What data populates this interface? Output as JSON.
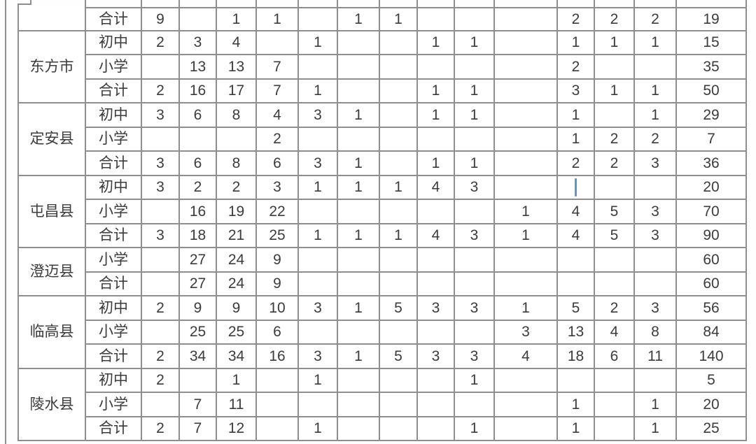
{
  "colors": {
    "grid_line": "#8e8e8e",
    "text": "#3b3b3b",
    "cursor": "#5e97cf"
  },
  "table": {
    "column_count": 14,
    "groups": [
      {
        "region": "",
        "rows": [
          {
            "label": "合计",
            "cells": [
              "9",
              "",
              "1",
              "1",
              "",
              "1",
              "1",
              "",
              "",
              "",
              "2",
              "2",
              "2",
              "19"
            ]
          }
        ]
      },
      {
        "region": "东方市",
        "rows": [
          {
            "label": "初中",
            "cells": [
              "2",
              "3",
              "4",
              "",
              "1",
              "",
              "",
              "1",
              "1",
              "",
              "1",
              "1",
              "1",
              "15"
            ]
          },
          {
            "label": "小学",
            "cells": [
              "",
              "13",
              "13",
              "7",
              "",
              "",
              "",
              "",
              "",
              "",
              "2",
              "",
              "",
              "35"
            ]
          },
          {
            "label": "合计",
            "cells": [
              "2",
              "16",
              "17",
              "7",
              "1",
              "",
              "",
              "1",
              "1",
              "",
              "3",
              "1",
              "1",
              "50"
            ]
          }
        ]
      },
      {
        "region": "定安县",
        "rows": [
          {
            "label": "初中",
            "cells": [
              "3",
              "6",
              "8",
              "4",
              "3",
              "1",
              "",
              "1",
              "1",
              "",
              "1",
              "",
              "1",
              "29"
            ]
          },
          {
            "label": "小学",
            "cells": [
              "",
              "",
              "",
              "2",
              "",
              "",
              "",
              "",
              "",
              "",
              "1",
              "2",
              "2",
              "7"
            ]
          },
          {
            "label": "合计",
            "cells": [
              "3",
              "6",
              "8",
              "6",
              "3",
              "1",
              "",
              "1",
              "1",
              "",
              "2",
              "2",
              "3",
              "36"
            ]
          }
        ]
      },
      {
        "region": "屯昌县",
        "rows": [
          {
            "label": "初中",
            "cells": [
              "3",
              "2",
              "2",
              "3",
              "1",
              "1",
              "1",
              "4",
              "3",
              "",
              "",
              "",
              "",
              "20"
            ]
          },
          {
            "label": "小学",
            "cells": [
              "",
              "16",
              "19",
              "22",
              "",
              "",
              "",
              "",
              "",
              "1",
              "4",
              "5",
              "3",
              "70"
            ]
          },
          {
            "label": "合计",
            "cells": [
              "3",
              "18",
              "21",
              "25",
              "1",
              "1",
              "1",
              "4",
              "3",
              "1",
              "4",
              "5",
              "3",
              "90"
            ]
          }
        ]
      },
      {
        "region": "澄迈县",
        "rows": [
          {
            "label": "小学",
            "cells": [
              "",
              "27",
              "24",
              "9",
              "",
              "",
              "",
              "",
              "",
              "",
              "",
              "",
              "",
              "60"
            ]
          },
          {
            "label": "合计",
            "cells": [
              "",
              "27",
              "24",
              "9",
              "",
              "",
              "",
              "",
              "",
              "",
              "",
              "",
              "",
              "60"
            ]
          }
        ]
      },
      {
        "region": "临高县",
        "rows": [
          {
            "label": "初中",
            "cells": [
              "2",
              "9",
              "9",
              "10",
              "3",
              "1",
              "5",
              "3",
              "3",
              "1",
              "5",
              "2",
              "3",
              "56"
            ]
          },
          {
            "label": "小学",
            "cells": [
              "",
              "25",
              "25",
              "6",
              "",
              "",
              "",
              "",
              "",
              "3",
              "13",
              "4",
              "8",
              "84"
            ]
          },
          {
            "label": "合计",
            "cells": [
              "2",
              "34",
              "34",
              "16",
              "3",
              "1",
              "5",
              "3",
              "3",
              "4",
              "18",
              "6",
              "11",
              "140"
            ]
          }
        ]
      },
      {
        "region": "陵水县",
        "rows": [
          {
            "label": "初中",
            "cells": [
              "2",
              "",
              "1",
              "",
              "1",
              "",
              "",
              "",
              "1",
              "",
              "",
              "",
              "",
              "5"
            ]
          },
          {
            "label": "小学",
            "cells": [
              "",
              "7",
              "11",
              "",
              "",
              "",
              "",
              "",
              "",
              "",
              "1",
              "",
              "1",
              "20"
            ]
          },
          {
            "label": "合计",
            "cells": [
              "2",
              "7",
              "12",
              "",
              "1",
              "",
              "",
              "",
              "1",
              "",
              "1",
              "",
              "1",
              "25"
            ]
          }
        ]
      }
    ],
    "cursor": {
      "group_index": 3,
      "row_index": 0,
      "cell_index": 10
    }
  }
}
